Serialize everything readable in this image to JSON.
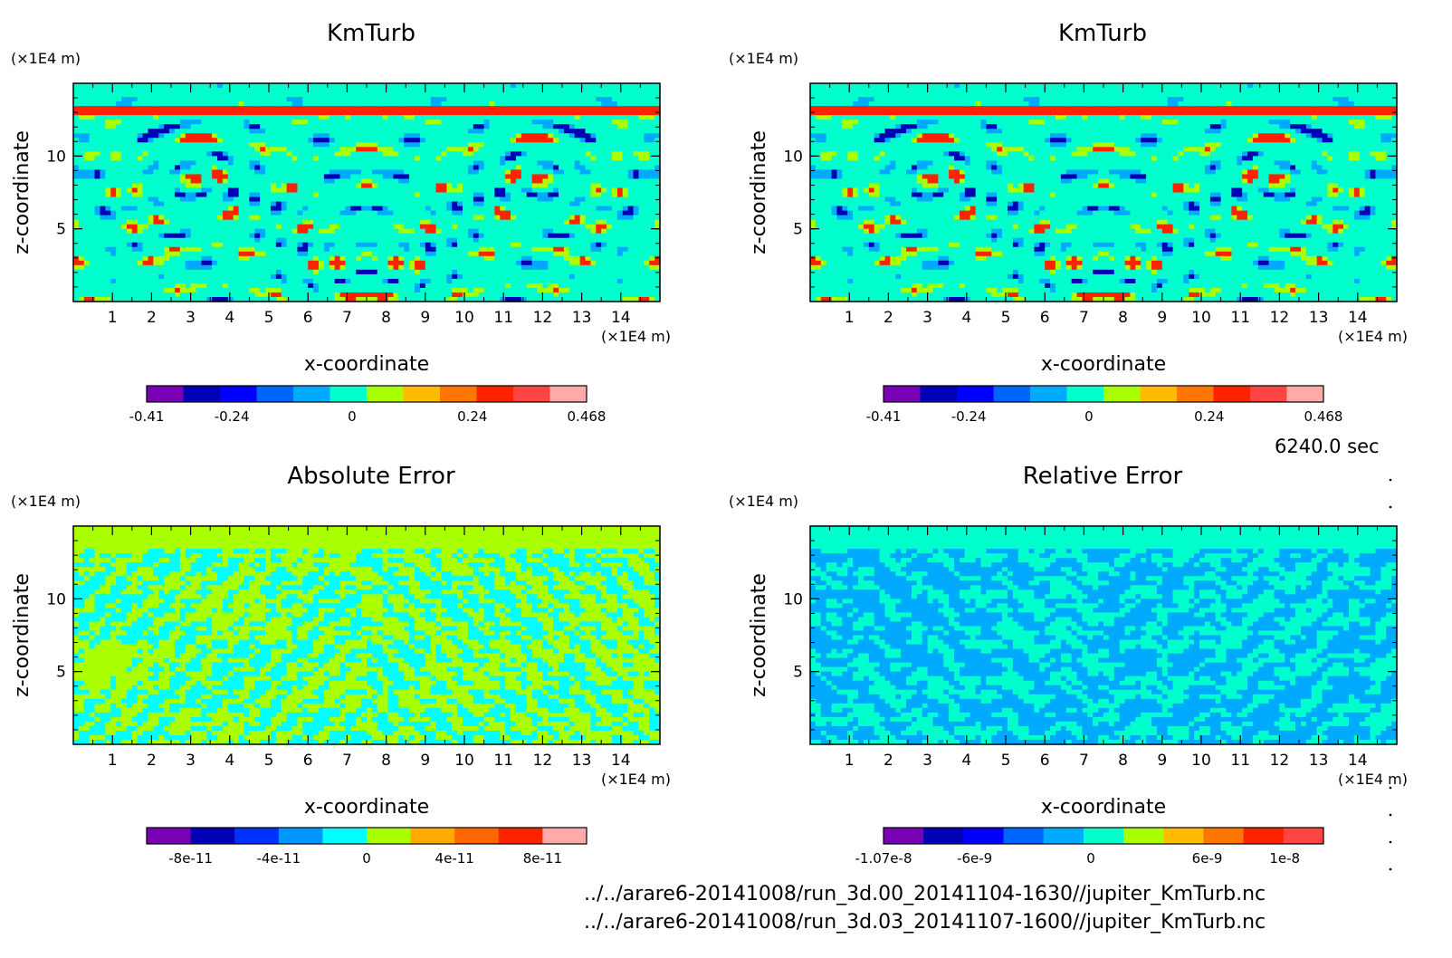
{
  "time_label": "6240.0 sec",
  "files": [
    "../../arare6-20141008/run_3d.00_20141104-1630//jupiter_KmTurb.nc",
    "../../arare6-20141008/run_3d.03_20141107-1600//jupiter_KmTurb.nc"
  ],
  "chart_data": [
    {
      "type": "heatmap",
      "title": "KmTurb",
      "xlabel": "x-coordinate",
      "ylabel": "z-coordinate",
      "x_unit": "(×1E4 m)",
      "y_unit": "(×1E4 m)",
      "xticks": [
        1,
        2,
        3,
        4,
        5,
        6,
        7,
        8,
        9,
        10,
        11,
        12,
        13,
        14
      ],
      "yticks": [
        5,
        10
      ],
      "xlim": [
        0,
        15
      ],
      "ylim": [
        0,
        15
      ],
      "field": "pattern",
      "colorbar": {
        "colors": [
          "#7a00b4",
          "#0000b4",
          "#0000ff",
          "#0064ff",
          "#00aaff",
          "#00ffcc",
          "#aaff00",
          "#ffbb00",
          "#ff7700",
          "#ff2200",
          "#ff4444",
          "#ffaaaa"
        ],
        "tick_labels": [
          "-0.41",
          "-0.24",
          "0",
          "0.24",
          "0.468"
        ],
        "tick_values": [
          -0.41,
          -0.24,
          0,
          0.24,
          0.468
        ],
        "range": [
          -0.41,
          0.468
        ]
      }
    },
    {
      "type": "heatmap",
      "title": "KmTurb",
      "xlabel": "x-coordinate",
      "ylabel": "z-coordinate",
      "x_unit": "(×1E4 m)",
      "y_unit": "(×1E4 m)",
      "xticks": [
        1,
        2,
        3,
        4,
        5,
        6,
        7,
        8,
        9,
        10,
        11,
        12,
        13,
        14
      ],
      "yticks": [
        5,
        10
      ],
      "xlim": [
        0,
        15
      ],
      "ylim": [
        0,
        15
      ],
      "field": "pattern",
      "colorbar": {
        "colors": [
          "#7a00b4",
          "#0000b4",
          "#0000ff",
          "#0064ff",
          "#00aaff",
          "#00ffcc",
          "#aaff00",
          "#ffbb00",
          "#ff7700",
          "#ff2200",
          "#ff4444",
          "#ffaaaa"
        ],
        "tick_labels": [
          "-0.41",
          "-0.24",
          "0",
          "0.24",
          "0.468"
        ],
        "tick_values": [
          -0.41,
          -0.24,
          0,
          0.24,
          0.468
        ],
        "range": [
          -0.41,
          0.468
        ]
      }
    },
    {
      "type": "heatmap",
      "title": "Absolute Error",
      "xlabel": "x-coordinate",
      "ylabel": "z-coordinate",
      "x_unit": "(×1E4 m)",
      "y_unit": "(×1E4 m)",
      "xticks": [
        1,
        2,
        3,
        4,
        5,
        6,
        7,
        8,
        9,
        10,
        11,
        12,
        13,
        14
      ],
      "yticks": [
        5,
        10
      ],
      "xlim": [
        0,
        15
      ],
      "ylim": [
        0,
        15
      ],
      "field": "error_abs",
      "colorbar": {
        "colors": [
          "#7a00b4",
          "#0000b4",
          "#0032ff",
          "#0096ff",
          "#00ffff",
          "#aaff00",
          "#ffaa00",
          "#ff6600",
          "#ff2200",
          "#ffaaaa"
        ],
        "tick_labels": [
          "-8e-11",
          "-4e-11",
          "0",
          "4e-11",
          "8e-11"
        ],
        "tick_values": [
          -8e-11,
          -4e-11,
          0,
          4e-11,
          8e-11
        ],
        "range": [
          -1e-10,
          1e-10
        ]
      }
    },
    {
      "type": "heatmap",
      "title": "Relative Error",
      "xlabel": "x-coordinate",
      "ylabel": "z-coordinate",
      "x_unit": "(×1E4 m)",
      "y_unit": "(×1E4 m)",
      "xticks": [
        1,
        2,
        3,
        4,
        5,
        6,
        7,
        8,
        9,
        10,
        11,
        12,
        13,
        14
      ],
      "yticks": [
        5,
        10
      ],
      "xlim": [
        0,
        15
      ],
      "ylim": [
        0,
        15
      ],
      "field": "error_rel",
      "colorbar": {
        "colors": [
          "#7a00b4",
          "#0000b4",
          "#0000ff",
          "#0064ff",
          "#00aaff",
          "#00ffcc",
          "#aaff00",
          "#ffbb00",
          "#ff7700",
          "#ff2200",
          "#ff4444"
        ],
        "tick_labels": [
          "-1.07e-8",
          "-6e-9",
          "0",
          "6e-9",
          "1e-8"
        ],
        "tick_values": [
          -1.07e-08,
          -6e-09,
          0,
          6e-09,
          1e-08
        ],
        "range": [
          -1.07e-08,
          1.2e-08
        ]
      }
    }
  ]
}
